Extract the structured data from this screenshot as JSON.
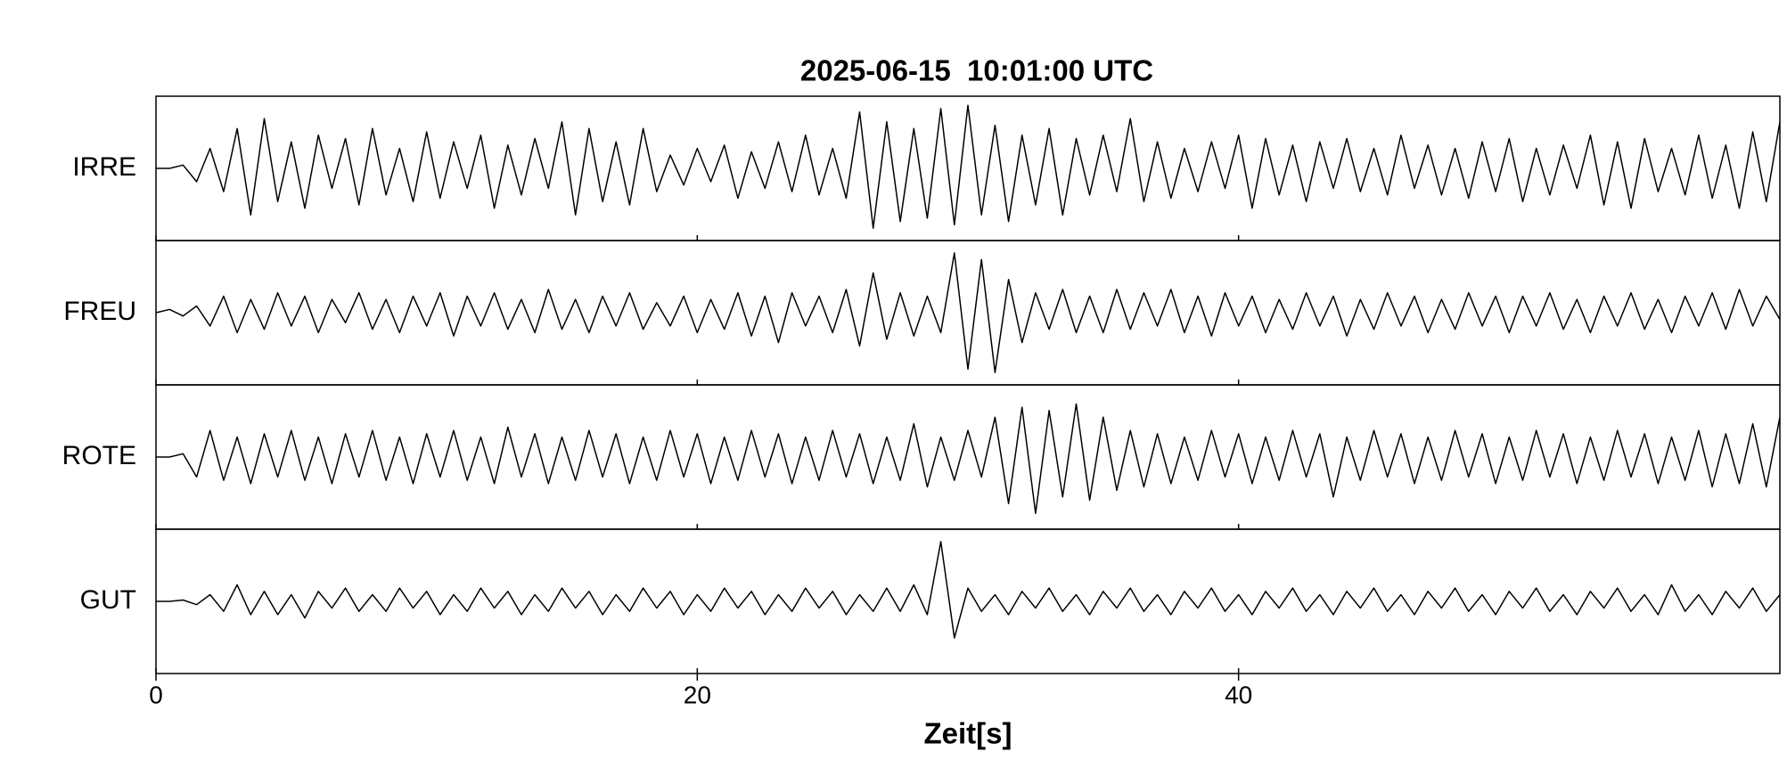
{
  "chart_data": {
    "type": "line",
    "title": "2025-06-15  10:01:00 UTC",
    "x_label": "Zeit[s]",
    "xlim": [
      0,
      60
    ],
    "xticks": [
      0,
      20,
      40
    ],
    "ylim": [
      -1,
      1
    ],
    "x": [
      0,
      0.5,
      1,
      1.5,
      2,
      2.5,
      3,
      3.5,
      4,
      4.5,
      5,
      5.5,
      6,
      6.5,
      7,
      7.5,
      8,
      8.5,
      9,
      9.5,
      10,
      10.5,
      11,
      11.5,
      12,
      12.5,
      13,
      13.5,
      14,
      14.5,
      15,
      15.5,
      16,
      16.5,
      17,
      17.5,
      18,
      18.5,
      19,
      19.5,
      20,
      20.5,
      21,
      21.5,
      22,
      22.5,
      23,
      23.5,
      24,
      24.5,
      25,
      25.5,
      26,
      26.5,
      27,
      27.5,
      28,
      28.5,
      29,
      29.5,
      30,
      30.5,
      31,
      31.5,
      32,
      32.5,
      33,
      33.5,
      34,
      34.5,
      35,
      35.5,
      36,
      36.5,
      37,
      37.5,
      38,
      38.5,
      39,
      39.5,
      40,
      40.5,
      41,
      41.5,
      42,
      42.5,
      43,
      43.5,
      44,
      44.5,
      45,
      45.5,
      46,
      46.5,
      47,
      47.5,
      48,
      48.5,
      49,
      49.5,
      50,
      50.5,
      51,
      51.5,
      52,
      52.5,
      53,
      53.5,
      54,
      54.5,
      55,
      55.5,
      56,
      56.5,
      57,
      57.5,
      58,
      58.5,
      59,
      59.5,
      60
    ],
    "series": [
      {
        "name": "IRRE",
        "color": "#000000",
        "values": [
          0,
          0,
          0.05,
          -0.2,
          0.3,
          -0.35,
          0.6,
          -0.7,
          0.75,
          -0.5,
          0.4,
          -0.6,
          0.5,
          -0.3,
          0.45,
          -0.55,
          0.6,
          -0.4,
          0.3,
          -0.5,
          0.55,
          -0.45,
          0.4,
          -0.3,
          0.5,
          -0.6,
          0.35,
          -0.4,
          0.45,
          -0.3,
          0.7,
          -0.7,
          0.6,
          -0.5,
          0.4,
          -0.55,
          0.6,
          -0.35,
          0.2,
          -0.25,
          0.3,
          -0.2,
          0.35,
          -0.45,
          0.25,
          -0.3,
          0.4,
          -0.35,
          0.5,
          -0.4,
          0.3,
          -0.45,
          0.85,
          -0.9,
          0.7,
          -0.8,
          0.6,
          -0.75,
          0.9,
          -0.85,
          0.95,
          -0.7,
          0.65,
          -0.8,
          0.5,
          -0.55,
          0.6,
          -0.7,
          0.45,
          -0.4,
          0.5,
          -0.35,
          0.75,
          -0.5,
          0.4,
          -0.45,
          0.3,
          -0.35,
          0.4,
          -0.3,
          0.5,
          -0.6,
          0.45,
          -0.4,
          0.35,
          -0.5,
          0.4,
          -0.3,
          0.45,
          -0.35,
          0.3,
          -0.4,
          0.5,
          -0.3,
          0.35,
          -0.4,
          0.3,
          -0.45,
          0.4,
          -0.35,
          0.45,
          -0.5,
          0.3,
          -0.4,
          0.35,
          -0.3,
          0.5,
          -0.55,
          0.4,
          -0.6,
          0.45,
          -0.35,
          0.3,
          -0.4,
          0.5,
          -0.45,
          0.35,
          -0.6,
          0.55,
          -0.5,
          0.7
        ]
      },
      {
        "name": "FREU",
        "color": "#000000",
        "values": [
          0,
          0.05,
          -0.05,
          0.1,
          -0.2,
          0.25,
          -0.3,
          0.2,
          -0.25,
          0.3,
          -0.2,
          0.25,
          -0.3,
          0.2,
          -0.15,
          0.3,
          -0.25,
          0.2,
          -0.3,
          0.25,
          -0.2,
          0.3,
          -0.35,
          0.25,
          -0.2,
          0.3,
          -0.25,
          0.2,
          -0.3,
          0.35,
          -0.25,
          0.2,
          -0.3,
          0.25,
          -0.2,
          0.3,
          -0.25,
          0.15,
          -0.2,
          0.25,
          -0.3,
          0.2,
          -0.25,
          0.3,
          -0.35,
          0.25,
          -0.45,
          0.3,
          -0.2,
          0.25,
          -0.3,
          0.35,
          -0.5,
          0.6,
          -0.4,
          0.3,
          -0.35,
          0.25,
          -0.3,
          0.9,
          -0.85,
          0.8,
          -0.9,
          0.5,
          -0.45,
          0.3,
          -0.25,
          0.35,
          -0.3,
          0.25,
          -0.3,
          0.35,
          -0.25,
          0.3,
          -0.2,
          0.35,
          -0.3,
          0.25,
          -0.35,
          0.3,
          -0.2,
          0.25,
          -0.3,
          0.2,
          -0.25,
          0.3,
          -0.2,
          0.25,
          -0.35,
          0.2,
          -0.25,
          0.3,
          -0.2,
          0.25,
          -0.3,
          0.2,
          -0.25,
          0.3,
          -0.2,
          0.25,
          -0.3,
          0.25,
          -0.2,
          0.3,
          -0.25,
          0.2,
          -0.3,
          0.25,
          -0.2,
          0.3,
          -0.25,
          0.2,
          -0.3,
          0.25,
          -0.2,
          0.3,
          -0.25,
          0.35,
          -0.2,
          0.25,
          -0.1
        ]
      },
      {
        "name": "ROTE",
        "color": "#000000",
        "values": [
          0,
          0,
          0.05,
          -0.3,
          0.4,
          -0.35,
          0.3,
          -0.4,
          0.35,
          -0.3,
          0.4,
          -0.35,
          0.3,
          -0.4,
          0.35,
          -0.3,
          0.4,
          -0.35,
          0.3,
          -0.4,
          0.35,
          -0.3,
          0.4,
          -0.35,
          0.3,
          -0.4,
          0.45,
          -0.3,
          0.35,
          -0.4,
          0.3,
          -0.35,
          0.4,
          -0.3,
          0.35,
          -0.4,
          0.3,
          -0.35,
          0.4,
          -0.3,
          0.35,
          -0.4,
          0.3,
          -0.35,
          0.4,
          -0.3,
          0.35,
          -0.4,
          0.3,
          -0.35,
          0.4,
          -0.3,
          0.35,
          -0.4,
          0.3,
          -0.35,
          0.5,
          -0.45,
          0.3,
          -0.35,
          0.4,
          -0.3,
          0.6,
          -0.7,
          0.75,
          -0.85,
          0.7,
          -0.6,
          0.8,
          -0.65,
          0.6,
          -0.5,
          0.4,
          -0.45,
          0.35,
          -0.4,
          0.3,
          -0.35,
          0.4,
          -0.3,
          0.35,
          -0.4,
          0.3,
          -0.35,
          0.4,
          -0.3,
          0.35,
          -0.6,
          0.3,
          -0.35,
          0.4,
          -0.3,
          0.35,
          -0.4,
          0.3,
          -0.35,
          0.4,
          -0.3,
          0.35,
          -0.4,
          0.3,
          -0.35,
          0.4,
          -0.3,
          0.35,
          -0.4,
          0.3,
          -0.35,
          0.4,
          -0.3,
          0.35,
          -0.4,
          0.3,
          -0.35,
          0.4,
          -0.45,
          0.35,
          -0.4,
          0.5,
          -0.45,
          0.6
        ]
      },
      {
        "name": "GUT",
        "color": "#000000",
        "values": [
          0,
          0,
          0.02,
          -0.05,
          0.1,
          -0.15,
          0.25,
          -0.2,
          0.15,
          -0.2,
          0.1,
          -0.25,
          0.15,
          -0.1,
          0.2,
          -0.15,
          0.1,
          -0.15,
          0.2,
          -0.1,
          0.15,
          -0.2,
          0.1,
          -0.15,
          0.2,
          -0.1,
          0.15,
          -0.2,
          0.1,
          -0.15,
          0.2,
          -0.1,
          0.15,
          -0.2,
          0.1,
          -0.15,
          0.2,
          -0.1,
          0.15,
          -0.2,
          0.1,
          -0.15,
          0.2,
          -0.1,
          0.15,
          -0.2,
          0.1,
          -0.15,
          0.2,
          -0.1,
          0.15,
          -0.2,
          0.1,
          -0.15,
          0.2,
          -0.15,
          0.25,
          -0.2,
          0.9,
          -0.55,
          0.2,
          -0.15,
          0.1,
          -0.2,
          0.15,
          -0.1,
          0.2,
          -0.15,
          0.1,
          -0.2,
          0.15,
          -0.1,
          0.2,
          -0.15,
          0.1,
          -0.2,
          0.15,
          -0.1,
          0.2,
          -0.15,
          0.1,
          -0.2,
          0.15,
          -0.1,
          0.2,
          -0.15,
          0.1,
          -0.2,
          0.15,
          -0.1,
          0.2,
          -0.15,
          0.1,
          -0.2,
          0.15,
          -0.1,
          0.2,
          -0.15,
          0.1,
          -0.2,
          0.15,
          -0.1,
          0.2,
          -0.15,
          0.1,
          -0.2,
          0.15,
          -0.1,
          0.2,
          -0.15,
          0.1,
          -0.2,
          0.25,
          -0.15,
          0.1,
          -0.2,
          0.15,
          -0.1,
          0.2,
          -0.15,
          0.1
        ]
      }
    ]
  }
}
